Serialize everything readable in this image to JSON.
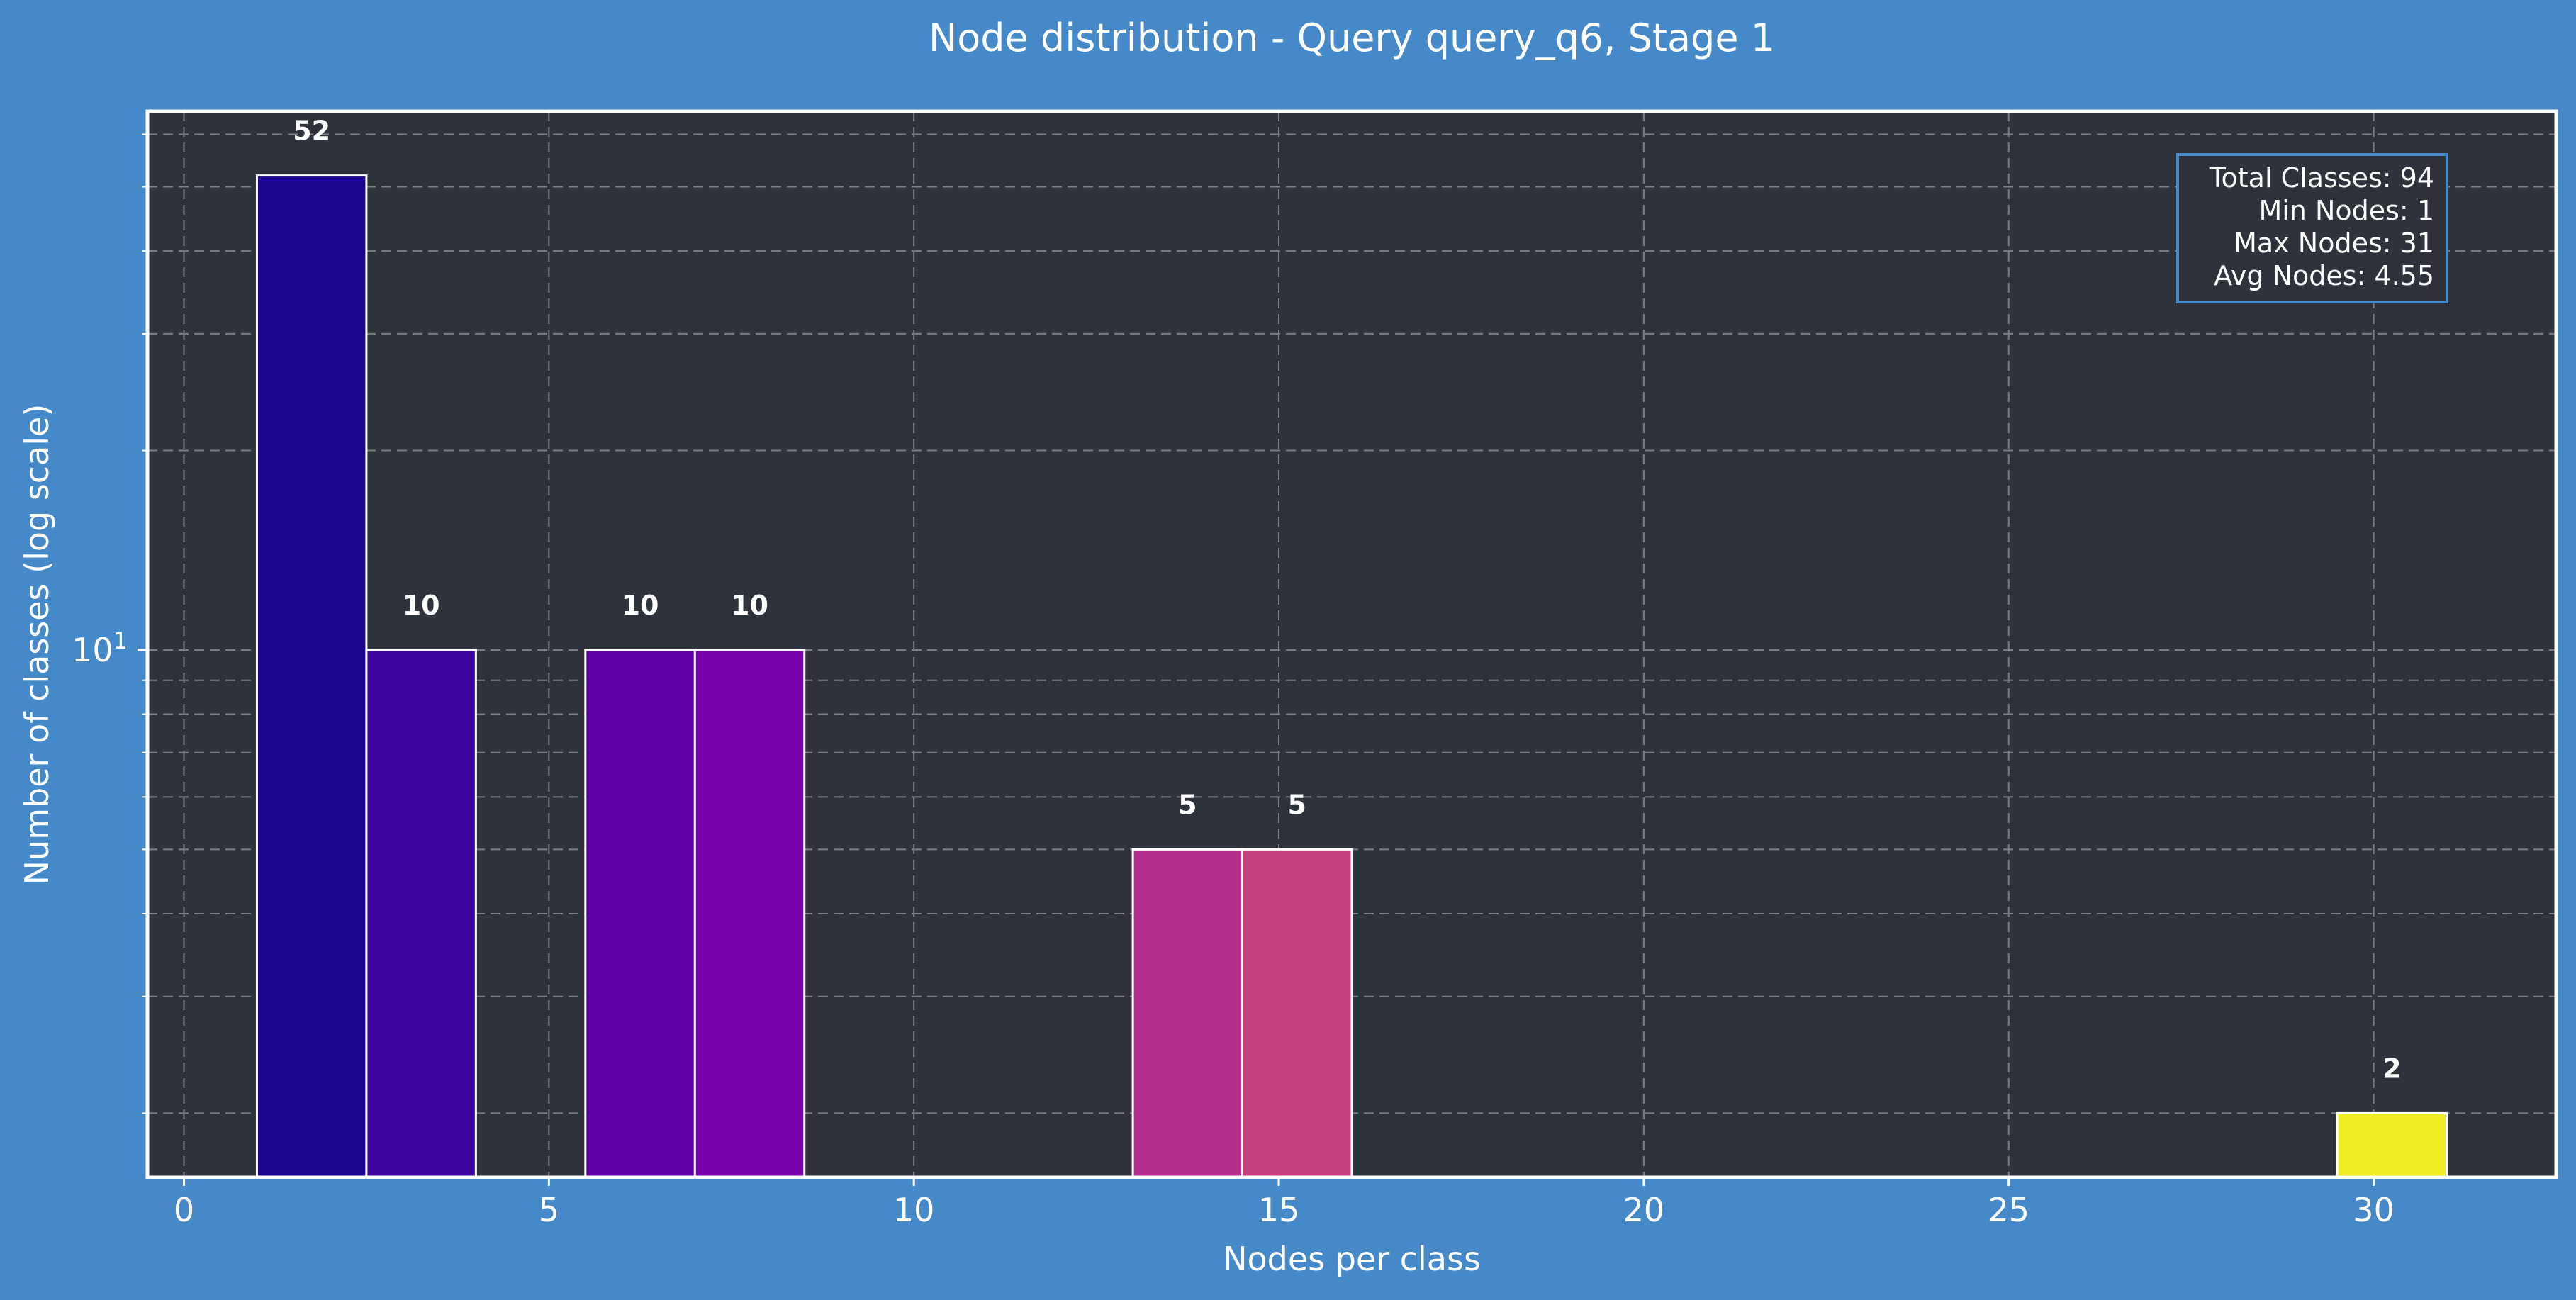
{
  "chart_data": {
    "type": "bar",
    "title": "Node distribution - Query query_q6, Stage 1",
    "xlabel": "Nodes per class",
    "ylabel": "Number of classes (log scale)",
    "yscale": "log",
    "xlim": [
      -0.5,
      32.5
    ],
    "ylim": [
      1.6,
      65
    ],
    "x_ticks": [
      0,
      5,
      10,
      15,
      20,
      25,
      30
    ],
    "y_tick_label": "10",
    "y_tick_label_exponent": "1",
    "grid": true,
    "bars": [
      {
        "x_start": 1.0,
        "x_end": 2.5,
        "value": 52,
        "label": "52",
        "color": "#1d068f"
      },
      {
        "x_start": 2.5,
        "x_end": 4.0,
        "value": 10,
        "label": "10",
        "color": "#3a049d"
      },
      {
        "x_start": 5.5,
        "x_end": 7.0,
        "value": 10,
        "label": "10",
        "color": "#5d01a6"
      },
      {
        "x_start": 7.0,
        "x_end": 8.5,
        "value": 10,
        "label": "10",
        "color": "#7701a8"
      },
      {
        "x_start": 13.0,
        "x_end": 14.5,
        "value": 5,
        "label": "5",
        "color": "#b42e8c"
      },
      {
        "x_start": 14.5,
        "x_end": 16.0,
        "value": 5,
        "label": "5",
        "color": "#c5407e"
      },
      {
        "x_start": 29.5,
        "x_end": 31.0,
        "value": 2,
        "label": "2",
        "color": "#f1ed26"
      }
    ],
    "stats_box": {
      "lines": [
        "Total Classes: 94",
        "Min Nodes: 1",
        "Max Nodes: 31",
        "Avg Nodes: 4.55"
      ],
      "placement": "top-right"
    }
  },
  "colors": {
    "figure_background": "#4689c8",
    "plot_background": "#2e333b",
    "plot_border": "#ffffff",
    "grid": "#7a7f86",
    "stats_border": "#4689c8"
  }
}
